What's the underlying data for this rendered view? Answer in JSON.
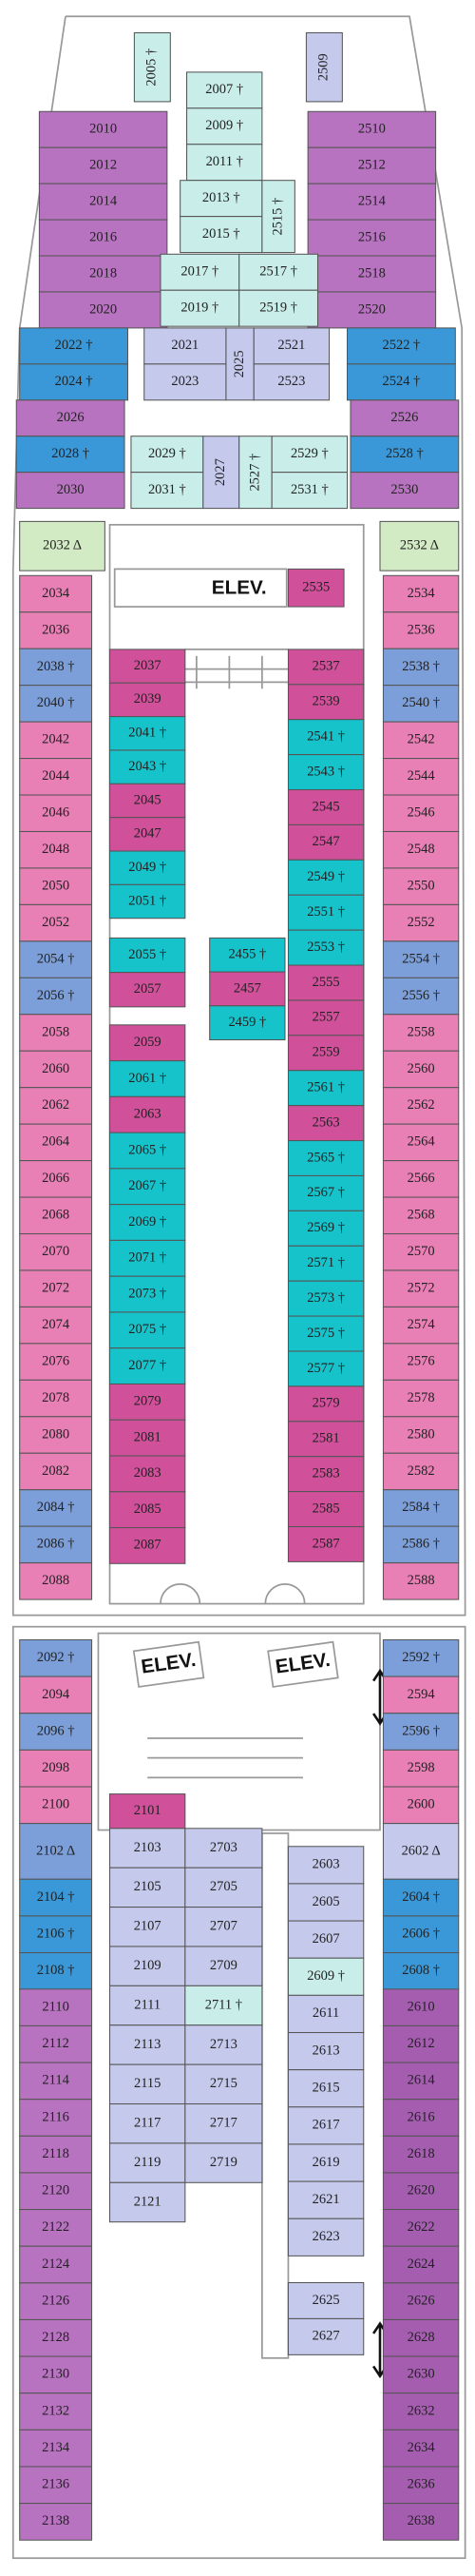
{
  "elevators": [
    "ELEV.",
    "ELEV.",
    "ELEV."
  ],
  "sections": [
    {
      "cabins": [
        "2005 †"
      ],
      "colors": [
        "#c9ede9"
      ]
    },
    {
      "cabins": [
        "2509"
      ],
      "colors": [
        "#c5c9ec"
      ]
    },
    {
      "cabins": [
        "2010",
        "2012",
        "2014",
        "2016",
        "2018",
        "2020"
      ],
      "colors": [
        "#b873c0",
        "#b873c0",
        "#b873c0",
        "#b873c0",
        "#b873c0",
        "#b873c0"
      ]
    },
    {
      "cabins": [
        "2510",
        "2512",
        "2514",
        "2516",
        "2518",
        "2520"
      ],
      "colors": [
        "#b873c0",
        "#b873c0",
        "#b873c0",
        "#b873c0",
        "#b873c0",
        "#b873c0"
      ]
    },
    {
      "cabins": [
        "2022 †",
        "2024 †"
      ],
      "colors": [
        "#3a98d8",
        "#3a98d8"
      ]
    },
    {
      "cabins": [
        "2522 †",
        "2524 †"
      ],
      "colors": [
        "#3a98d8",
        "#3a98d8"
      ]
    },
    {
      "cabins": [
        "2026",
        "2028 †",
        "2030"
      ],
      "colors": [
        "#b873c0",
        "#3a98d8",
        "#b873c0"
      ]
    },
    {
      "cabins": [
        "2526",
        "2528 †",
        "2530"
      ],
      "colors": [
        "#b873c0",
        "#3a98d8",
        "#b873c0"
      ]
    },
    {
      "cabins": [
        "2007 †",
        "2009 †",
        "2011 †"
      ],
      "colors": [
        "#c9ede9",
        "#c9ede9",
        "#c9ede9"
      ]
    },
    {
      "cabins": [
        "2013 †",
        "2015 †"
      ],
      "colors": [
        "#c9ede9",
        "#c9ede9"
      ]
    },
    {
      "cabins": [
        "2515 †"
      ],
      "colors": [
        "#c9ede9"
      ]
    },
    {
      "cabins": [
        "2017 †",
        "2019 †"
      ],
      "colors": [
        "#c9ede9",
        "#c9ede9"
      ]
    },
    {
      "cabins": [
        "2517 †",
        "2519 †"
      ],
      "colors": [
        "#c9ede9",
        "#c9ede9"
      ]
    },
    {
      "cabins": [
        "2021",
        "2023"
      ],
      "colors": [
        "#c5c9ec",
        "#c5c9ec"
      ]
    },
    {
      "cabins": [
        "2025"
      ],
      "colors": [
        "#c5c9ec"
      ]
    },
    {
      "cabins": [
        "2521",
        "2523"
      ],
      "colors": [
        "#c5c9ec",
        "#c5c9ec"
      ]
    },
    {
      "cabins": [
        "2029 †",
        "2031 †"
      ],
      "colors": [
        "#c9ede9",
        "#c9ede9"
      ]
    },
    {
      "cabins": [
        "2027"
      ],
      "colors": [
        "#c5c9ec"
      ]
    },
    {
      "cabins": [
        "2527 †"
      ],
      "colors": [
        "#c9ede9"
      ]
    },
    {
      "cabins": [
        "2529 †",
        "2531 †"
      ],
      "colors": [
        "#c9ede9",
        "#c9ede9"
      ]
    },
    {
      "cabins": [
        "2032 Δ"
      ],
      "colors": [
        "#d3ebc4"
      ]
    },
    {
      "cabins": [
        "2532 Δ"
      ],
      "colors": [
        "#d3ebc4"
      ]
    },
    {
      "cabins": [
        "2535"
      ],
      "colors": [
        "#d0509a"
      ]
    },
    {
      "cabins": [
        "2034",
        "2036",
        "2038 †",
        "2040 †",
        "2042",
        "2044",
        "2046",
        "2048",
        "2050",
        "2052",
        "2054 †",
        "2056 †",
        "2058",
        "2060",
        "2062",
        "2064",
        "2066",
        "2068",
        "2070",
        "2072",
        "2074",
        "2076",
        "2078",
        "2080",
        "2082",
        "2084 †",
        "2086 †",
        "2088"
      ],
      "colors": [
        "#e87fb5",
        "#e87fb5",
        "#7c9fd9",
        "#7c9fd9",
        "#e87fb5",
        "#e87fb5",
        "#e87fb5",
        "#e87fb5",
        "#e87fb5",
        "#e87fb5",
        "#7c9fd9",
        "#7c9fd9",
        "#e87fb5",
        "#e87fb5",
        "#e87fb5",
        "#e87fb5",
        "#e87fb5",
        "#e87fb5",
        "#e87fb5",
        "#e87fb5",
        "#e87fb5",
        "#e87fb5",
        "#e87fb5",
        "#e87fb5",
        "#e87fb5",
        "#7c9fd9",
        "#7c9fd9",
        "#e87fb5"
      ]
    },
    {
      "cabins": [
        "2534",
        "2536",
        "2538 †",
        "2540 †",
        "2542",
        "2544",
        "2546",
        "2548",
        "2550",
        "2552",
        "2554 †",
        "2556 †",
        "2558",
        "2560",
        "2562",
        "2564",
        "2566",
        "2568",
        "2570",
        "2572",
        "2574",
        "2576",
        "2578",
        "2580",
        "2582",
        "2584 †",
        "2586 †",
        "2588"
      ],
      "colors": [
        "#e87fb5",
        "#e87fb5",
        "#7c9fd9",
        "#7c9fd9",
        "#e87fb5",
        "#e87fb5",
        "#e87fb5",
        "#e87fb5",
        "#e87fb5",
        "#e87fb5",
        "#7c9fd9",
        "#7c9fd9",
        "#e87fb5",
        "#e87fb5",
        "#e87fb5",
        "#e87fb5",
        "#e87fb5",
        "#e87fb5",
        "#e87fb5",
        "#e87fb5",
        "#e87fb5",
        "#e87fb5",
        "#e87fb5",
        "#e87fb5",
        "#e87fb5",
        "#7c9fd9",
        "#7c9fd9",
        "#e87fb5"
      ]
    },
    {
      "cabins": [
        "2037",
        "2039",
        "2041 †",
        "2043 †",
        "2045",
        "2047",
        "2049 †",
        "2051 †"
      ],
      "colors": [
        "#d0509a",
        "#d0509a",
        "#16c3cb",
        "#16c3cb",
        "#d0509a",
        "#d0509a",
        "#16c3cb",
        "#16c3cb"
      ]
    },
    {
      "cabins": [
        "2055 †",
        "2057"
      ],
      "colors": [
        "#16c3cb",
        "#d0509a"
      ]
    },
    {
      "cabins": [
        "2059",
        "2061 †",
        "2063",
        "2065 †",
        "2067 †",
        "2069 †",
        "2071 †",
        "2073 †",
        "2075 †",
        "2077 †",
        "2079",
        "2081",
        "2083",
        "2085",
        "2087"
      ],
      "colors": [
        "#d0509a",
        "#16c3cb",
        "#d0509a",
        "#16c3cb",
        "#16c3cb",
        "#16c3cb",
        "#16c3cb",
        "#16c3cb",
        "#16c3cb",
        "#16c3cb",
        "#d0509a",
        "#d0509a",
        "#d0509a",
        "#d0509a",
        "#d0509a"
      ]
    },
    {
      "cabins": [
        "2455 †",
        "2457",
        "2459 †"
      ],
      "colors": [
        "#16c3cb",
        "#d0509a",
        "#16c3cb"
      ]
    },
    {
      "cabins": [
        "2537",
        "2539",
        "2541 †",
        "2543 †",
        "2545",
        "2547",
        "2549 †",
        "2551 †",
        "2553 †",
        "2555",
        "2557",
        "2559",
        "2561 †",
        "2563",
        "2565 †",
        "2567 †",
        "2569 †",
        "2571 †",
        "2573 †",
        "2575 †",
        "2577 †",
        "2579",
        "2581",
        "2583",
        "2585",
        "2587"
      ],
      "colors": [
        "#d0509a",
        "#d0509a",
        "#16c3cb",
        "#16c3cb",
        "#d0509a",
        "#d0509a",
        "#16c3cb",
        "#16c3cb",
        "#16c3cb",
        "#d0509a",
        "#d0509a",
        "#d0509a",
        "#16c3cb",
        "#d0509a",
        "#16c3cb",
        "#16c3cb",
        "#16c3cb",
        "#16c3cb",
        "#16c3cb",
        "#16c3cb",
        "#16c3cb",
        "#d0509a",
        "#d0509a",
        "#d0509a",
        "#d0509a",
        "#d0509a"
      ]
    },
    {
      "cabins": [
        "2092 †",
        "2094",
        "2096 †",
        "2098",
        "2100"
      ],
      "colors": [
        "#7c9fd9",
        "#e87fb5",
        "#7c9fd9",
        "#e87fb5",
        "#e87fb5"
      ]
    },
    {
      "cabins": [
        "2102 Δ"
      ],
      "colors": [
        "#7c9fd9"
      ]
    },
    {
      "cabins": [
        "2104 †",
        "2106 †",
        "2108 †"
      ],
      "colors": [
        "#3a98d8",
        "#3a98d8",
        "#3a98d8"
      ]
    },
    {
      "cabins": [
        "2110",
        "2112",
        "2114",
        "2116",
        "2118",
        "2120",
        "2122",
        "2124",
        "2126",
        "2128",
        "2130",
        "2132",
        "2134",
        "2136",
        "2138"
      ],
      "colors": [
        "#b873c0",
        "#b873c0",
        "#b873c0",
        "#b873c0",
        "#b873c0",
        "#b873c0",
        "#b873c0",
        "#b873c0",
        "#b873c0",
        "#b873c0",
        "#b873c0",
        "#b873c0",
        "#b873c0",
        "#b873c0",
        "#b873c0"
      ]
    },
    {
      "cabins": [
        "2592 †",
        "2594",
        "2596 †",
        "2598",
        "2600"
      ],
      "colors": [
        "#7c9fd9",
        "#e87fb5",
        "#7c9fd9",
        "#e87fb5",
        "#e87fb5"
      ]
    },
    {
      "cabins": [
        "2602 Δ"
      ],
      "colors": [
        "#c5c9ec"
      ]
    },
    {
      "cabins": [
        "2604 †",
        "2606 †",
        "2608 †"
      ],
      "colors": [
        "#3a98d8",
        "#3a98d8",
        "#3a98d8"
      ]
    },
    {
      "cabins": [
        "2610",
        "2612",
        "2614",
        "2616",
        "2618",
        "2620",
        "2622",
        "2624",
        "2626",
        "2628",
        "2630",
        "2632",
        "2634",
        "2636",
        "2638"
      ],
      "colors": [
        "#a55db0",
        "#a55db0",
        "#a55db0",
        "#a55db0",
        "#a55db0",
        "#a55db0",
        "#a55db0",
        "#a55db0",
        "#a55db0",
        "#a55db0",
        "#a55db0",
        "#a55db0",
        "#a55db0",
        "#a55db0",
        "#a55db0"
      ]
    },
    {
      "cabins": [
        "2101"
      ],
      "colors": [
        "#d0509a"
      ]
    },
    {
      "cabins": [
        "2103",
        "2105",
        "2107",
        "2109",
        "2111",
        "2113",
        "2115",
        "2117",
        "2119",
        "2121"
      ],
      "colors": [
        "#c5c9ec",
        "#c5c9ec",
        "#c5c9ec",
        "#c5c9ec",
        "#c5c9ec",
        "#c5c9ec",
        "#c5c9ec",
        "#c5c9ec",
        "#c5c9ec",
        "#c5c9ec"
      ]
    },
    {
      "cabins": [
        "2703",
        "2705",
        "2707",
        "2709",
        "2711 †",
        "2713",
        "2715",
        "2717",
        "2719"
      ],
      "colors": [
        "#c5c9ec",
        "#c5c9ec",
        "#c5c9ec",
        "#c5c9ec",
        "#c9ede9",
        "#c5c9ec",
        "#c5c9ec",
        "#c5c9ec",
        "#c5c9ec"
      ]
    },
    {
      "cabins": [
        "2603",
        "2605",
        "2607",
        "2609 †",
        "2611",
        "2613",
        "2615",
        "2617",
        "2619",
        "2621",
        "2623"
      ],
      "colors": [
        "#c5c9ec",
        "#c5c9ec",
        "#c5c9ec",
        "#c9ede9",
        "#c5c9ec",
        "#c5c9ec",
        "#c5c9ec",
        "#c5c9ec",
        "#c5c9ec",
        "#c5c9ec",
        "#c5c9ec"
      ]
    },
    {
      "cabins": [
        "2625",
        "2627"
      ],
      "colors": [
        "#c5c9ec",
        "#c5c9ec"
      ]
    }
  ]
}
